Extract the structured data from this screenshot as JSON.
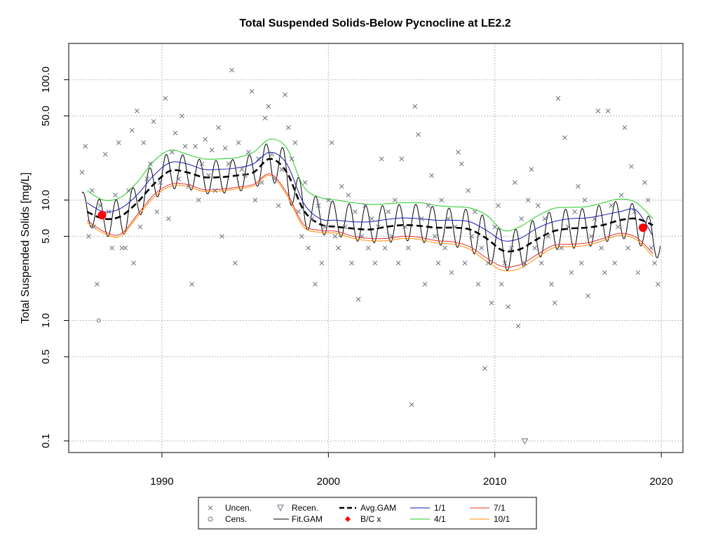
{
  "chart_data": {
    "type": "scatter",
    "title": "Total Suspended Solids-Below Pycnocline at LE2.2",
    "xlabel": "",
    "ylabel": "Total Suspended Solids [mg/L]",
    "x_scale": "linear",
    "y_scale": "log",
    "xlim": [
      1984.4,
      2021.3
    ],
    "ylim": [
      0.08,
      200
    ],
    "x_ticks": [
      "1990",
      "2000",
      "2010",
      "2020"
    ],
    "x_tick_values": [
      1990,
      2000,
      2010,
      2020
    ],
    "y_ticks": [
      "0.1",
      "0.5",
      "1.0",
      "5.0",
      "10.0",
      "50.0",
      "100.0"
    ],
    "y_tick_values": [
      0.1,
      0.5,
      1.0,
      5.0,
      10.0,
      50.0,
      100.0
    ],
    "grid": true,
    "legend_position": "bottom-center",
    "colors": {
      "uncensored": "#6B7280",
      "fit_gam": "#000000",
      "avg_gam": "#000000",
      "jan_1": "#1A1AB0",
      "apr_1": "#22CC22",
      "jul_1": "#E53030",
      "oct_1": "#FF8C00",
      "bc": "#FF0000",
      "grid": "#BBBBBB"
    },
    "legend": {
      "uncen": "Uncen.",
      "cens": "Cens.",
      "recen": "Recen.",
      "fit_gam": "Fit.GAM",
      "avg_gam": "Avg.GAM",
      "bc": "B/C x",
      "jan": "1/1",
      "apr": "4/1",
      "jul": "7/1",
      "oct": "10/1"
    },
    "bc_points": [
      {
        "x": 1986.4,
        "y": 7.5
      },
      {
        "x": 2018.9,
        "y": 5.9
      }
    ],
    "censored_points": [
      {
        "x": 1986.2,
        "y": 1.0
      }
    ],
    "recensored_points": [
      {
        "x": 2011.8,
        "y": 0.1
      }
    ],
    "avg_gam": {
      "x": [
        1985.5,
        1986.5,
        1987.5,
        1988.5,
        1989.5,
        1990.5,
        1991.5,
        1992.5,
        1993.5,
        1994.5,
        1995.5,
        1996.5,
        1997.5,
        1998.5,
        1999.5,
        2000.5,
        2001.5,
        2002.5,
        2003.5,
        2004.5,
        2005.5,
        2006.5,
        2007.5,
        2008.5,
        2009.5,
        2010.5,
        2011.5,
        2012.5,
        2013.5,
        2014.5,
        2015.5,
        2016.5,
        2017.5,
        2018.5,
        2019.5
      ],
      "y": [
        8.0,
        7.0,
        7.3,
        9.5,
        13.5,
        17.5,
        17.0,
        15.5,
        15.5,
        16.0,
        17.0,
        22.0,
        17.0,
        8.3,
        6.3,
        6.0,
        5.8,
        5.7,
        6.0,
        6.2,
        6.1,
        5.9,
        5.9,
        5.7,
        4.8,
        3.8,
        3.9,
        4.7,
        5.5,
        5.8,
        5.9,
        6.2,
        6.8,
        7.0,
        6.2
      ]
    },
    "series": [
      {
        "name": "1/1",
        "x": [
          1985.5,
          1986.5,
          1987.5,
          1988.5,
          1989.5,
          1990.5,
          1991.5,
          1992.5,
          1993.5,
          1994.5,
          1995.5,
          1996.5,
          1997.5,
          1998.5,
          1999.5,
          2000.5,
          2001.5,
          2002.5,
          2003.5,
          2004.5,
          2005.5,
          2006.5,
          2007.5,
          2008.5,
          2009.5,
          2010.5,
          2011.5,
          2012.5,
          2013.5,
          2014.5,
          2015.5,
          2016.5,
          2017.5,
          2018.5,
          2019.5
        ],
        "y": [
          9.5,
          8.0,
          8.5,
          11.0,
          16.0,
          20.5,
          20.0,
          18.0,
          18.0,
          18.5,
          20.0,
          25.0,
          20.0,
          9.5,
          7.0,
          6.8,
          6.6,
          6.6,
          6.9,
          7.1,
          7.0,
          6.8,
          6.8,
          6.6,
          5.6,
          4.6,
          4.8,
          5.8,
          6.6,
          7.0,
          7.1,
          7.5,
          8.0,
          8.2,
          5.0
        ]
      },
      {
        "name": "4/1",
        "x": [
          1985.5,
          1986.5,
          1987.5,
          1988.5,
          1989.5,
          1990.5,
          1991.5,
          1992.5,
          1993.5,
          1994.5,
          1995.5,
          1996.5,
          1997.5,
          1998.5,
          1999.5,
          2000.5,
          2001.5,
          2002.5,
          2003.5,
          2004.5,
          2005.5,
          2006.5,
          2007.5,
          2008.5,
          2009.5,
          2010.5,
          2011.5,
          2012.5,
          2013.5,
          2014.5,
          2015.5,
          2016.5,
          2017.5,
          2018.5,
          2019.5
        ],
        "y": [
          12.0,
          10.0,
          10.5,
          14.0,
          21.0,
          26.0,
          24.0,
          22.0,
          22.0,
          22.5,
          25.0,
          32.0,
          27.0,
          13.0,
          10.5,
          10.0,
          9.5,
          9.2,
          9.3,
          9.5,
          9.5,
          9.0,
          8.8,
          8.6,
          7.5,
          5.6,
          6.0,
          7.3,
          8.5,
          8.7,
          8.8,
          9.5,
          10.2,
          9.5,
          7.0
        ]
      },
      {
        "name": "7/1",
        "x": [
          1985.5,
          1986.5,
          1987.5,
          1988.5,
          1989.5,
          1990.5,
          1991.5,
          1992.5,
          1993.5,
          1994.5,
          1995.5,
          1996.5,
          1997.5,
          1998.5,
          1999.5,
          2000.5,
          2001.5,
          2002.5,
          2003.5,
          2004.5,
          2005.5,
          2006.5,
          2007.5,
          2008.5,
          2009.5,
          2010.5,
          2011.5,
          2012.5,
          2013.5,
          2014.5,
          2015.5,
          2016.5,
          2017.5,
          2018.5,
          2019.5
        ],
        "y": [
          6.8,
          5.5,
          5.2,
          7.5,
          11.0,
          13.5,
          13.5,
          12.2,
          12.3,
          12.8,
          13.5,
          16.5,
          11.5,
          6.3,
          5.6,
          5.5,
          5.0,
          4.8,
          4.8,
          5.0,
          4.9,
          4.6,
          4.5,
          4.1,
          3.3,
          2.8,
          2.9,
          3.5,
          4.2,
          4.3,
          4.4,
          4.8,
          5.3,
          4.9,
          3.6
        ]
      },
      {
        "name": "10/1",
        "x": [
          1985.5,
          1986.5,
          1987.5,
          1988.5,
          1989.5,
          1990.5,
          1991.5,
          1992.5,
          1993.5,
          1994.5,
          1995.5,
          1996.5,
          1997.5,
          1998.5,
          1999.5,
          2000.5,
          2001.5,
          2002.5,
          2003.5,
          2004.5,
          2005.5,
          2006.5,
          2007.5,
          2008.5,
          2009.5,
          2010.5,
          2011.5,
          2012.5,
          2013.5,
          2014.5,
          2015.5,
          2016.5,
          2017.5,
          2018.5,
          2019.5
        ],
        "y": [
          6.5,
          5.3,
          5.0,
          7.2,
          10.5,
          13.0,
          13.0,
          11.8,
          11.9,
          12.4,
          13.1,
          16.0,
          11.0,
          6.0,
          5.4,
          5.3,
          4.8,
          4.6,
          4.6,
          4.8,
          4.7,
          4.4,
          4.3,
          3.9,
          3.1,
          2.6,
          2.7,
          3.3,
          4.0,
          4.1,
          4.2,
          4.6,
          5.1,
          4.7,
          3.4
        ]
      }
    ],
    "uncensored_points": [
      {
        "x": 1985.2,
        "y": 17
      },
      {
        "x": 1985.4,
        "y": 28
      },
      {
        "x": 1985.6,
        "y": 5
      },
      {
        "x": 1985.8,
        "y": 12
      },
      {
        "x": 1985.9,
        "y": 6
      },
      {
        "x": 1986.1,
        "y": 2
      },
      {
        "x": 1986.3,
        "y": 9
      },
      {
        "x": 1986.6,
        "y": 24
      },
      {
        "x": 1986.8,
        "y": 8
      },
      {
        "x": 1987.0,
        "y": 4
      },
      {
        "x": 1987.2,
        "y": 11
      },
      {
        "x": 1987.4,
        "y": 30
      },
      {
        "x": 1987.6,
        "y": 4
      },
      {
        "x": 1987.8,
        "y": 4
      },
      {
        "x": 1988.0,
        "y": 12
      },
      {
        "x": 1988.2,
        "y": 38
      },
      {
        "x": 1988.3,
        "y": 3
      },
      {
        "x": 1988.5,
        "y": 55
      },
      {
        "x": 1988.7,
        "y": 6
      },
      {
        "x": 1988.9,
        "y": 30
      },
      {
        "x": 1989.1,
        "y": 15
      },
      {
        "x": 1989.3,
        "y": 20
      },
      {
        "x": 1989.5,
        "y": 45
      },
      {
        "x": 1989.7,
        "y": 8
      },
      {
        "x": 1989.9,
        "y": 14
      },
      {
        "x": 1990.2,
        "y": 70
      },
      {
        "x": 1990.4,
        "y": 7
      },
      {
        "x": 1990.6,
        "y": 25
      },
      {
        "x": 1990.8,
        "y": 36
      },
      {
        "x": 1991.0,
        "y": 15
      },
      {
        "x": 1991.2,
        "y": 50
      },
      {
        "x": 1991.4,
        "y": 28
      },
      {
        "x": 1991.6,
        "y": 13
      },
      {
        "x": 1991.8,
        "y": 2
      },
      {
        "x": 1992.0,
        "y": 28
      },
      {
        "x": 1992.2,
        "y": 10
      },
      {
        "x": 1992.4,
        "y": 20
      },
      {
        "x": 1992.6,
        "y": 32
      },
      {
        "x": 1992.8,
        "y": 16
      },
      {
        "x": 1993.0,
        "y": 26
      },
      {
        "x": 1993.2,
        "y": 12
      },
      {
        "x": 1993.4,
        "y": 40
      },
      {
        "x": 1993.6,
        "y": 5
      },
      {
        "x": 1993.8,
        "y": 27
      },
      {
        "x": 1994.0,
        "y": 20
      },
      {
        "x": 1994.2,
        "y": 120
      },
      {
        "x": 1994.4,
        "y": 3
      },
      {
        "x": 1994.6,
        "y": 30
      },
      {
        "x": 1994.8,
        "y": 18
      },
      {
        "x": 1995.0,
        "y": 16
      },
      {
        "x": 1995.2,
        "y": 25
      },
      {
        "x": 1995.4,
        "y": 80
      },
      {
        "x": 1995.6,
        "y": 10
      },
      {
        "x": 1995.8,
        "y": 22
      },
      {
        "x": 1996.0,
        "y": 14
      },
      {
        "x": 1996.2,
        "y": 48
      },
      {
        "x": 1996.4,
        "y": 60
      },
      {
        "x": 1996.6,
        "y": 24
      },
      {
        "x": 1996.8,
        "y": 15
      },
      {
        "x": 1997.0,
        "y": 9
      },
      {
        "x": 1997.2,
        "y": 18
      },
      {
        "x": 1997.4,
        "y": 75
      },
      {
        "x": 1997.6,
        "y": 40
      },
      {
        "x": 1997.8,
        "y": 22
      },
      {
        "x": 1998.0,
        "y": 30
      },
      {
        "x": 1998.2,
        "y": 8
      },
      {
        "x": 1998.4,
        "y": 5
      },
      {
        "x": 1998.6,
        "y": 14
      },
      {
        "x": 1998.8,
        "y": 4
      },
      {
        "x": 1999.0,
        "y": 7
      },
      {
        "x": 1999.2,
        "y": 2
      },
      {
        "x": 1999.4,
        "y": 9
      },
      {
        "x": 1999.6,
        "y": 3
      },
      {
        "x": 1999.8,
        "y": 6
      },
      {
        "x": 2000.0,
        "y": 10
      },
      {
        "x": 2000.2,
        "y": 30
      },
      {
        "x": 2000.4,
        "y": 5
      },
      {
        "x": 2000.6,
        "y": 4
      },
      {
        "x": 2000.8,
        "y": 13
      },
      {
        "x": 2001.0,
        "y": 6
      },
      {
        "x": 2001.2,
        "y": 11
      },
      {
        "x": 2001.4,
        "y": 3
      },
      {
        "x": 2001.6,
        "y": 8
      },
      {
        "x": 2001.8,
        "y": 1.5
      },
      {
        "x": 2002.0,
        "y": 5
      },
      {
        "x": 2002.2,
        "y": 9
      },
      {
        "x": 2002.4,
        "y": 4
      },
      {
        "x": 2002.6,
        "y": 7
      },
      {
        "x": 2002.8,
        "y": 3
      },
      {
        "x": 2003.0,
        "y": 6
      },
      {
        "x": 2003.2,
        "y": 22
      },
      {
        "x": 2003.4,
        "y": 4
      },
      {
        "x": 2003.6,
        "y": 8
      },
      {
        "x": 2003.8,
        "y": 5
      },
      {
        "x": 2004.0,
        "y": 10
      },
      {
        "x": 2004.2,
        "y": 3
      },
      {
        "x": 2004.4,
        "y": 22
      },
      {
        "x": 2004.6,
        "y": 6
      },
      {
        "x": 2004.8,
        "y": 4
      },
      {
        "x": 2005.0,
        "y": 0.2
      },
      {
        "x": 2005.2,
        "y": 60
      },
      {
        "x": 2005.4,
        "y": 35
      },
      {
        "x": 2005.6,
        "y": 7
      },
      {
        "x": 2005.8,
        "y": 2
      },
      {
        "x": 2006.0,
        "y": 9
      },
      {
        "x": 2006.2,
        "y": 16
      },
      {
        "x": 2006.4,
        "y": 5
      },
      {
        "x": 2006.6,
        "y": 3
      },
      {
        "x": 2006.8,
        "y": 10
      },
      {
        "x": 2007.0,
        "y": 4
      },
      {
        "x": 2007.2,
        "y": 7
      },
      {
        "x": 2007.4,
        "y": 2.5
      },
      {
        "x": 2007.6,
        "y": 6
      },
      {
        "x": 2007.8,
        "y": 25
      },
      {
        "x": 2008.0,
        "y": 20
      },
      {
        "x": 2008.2,
        "y": 3
      },
      {
        "x": 2008.4,
        "y": 12
      },
      {
        "x": 2008.6,
        "y": 5
      },
      {
        "x": 2008.8,
        "y": 8
      },
      {
        "x": 2009.0,
        "y": 2
      },
      {
        "x": 2009.2,
        "y": 4
      },
      {
        "x": 2009.4,
        "y": 0.4
      },
      {
        "x": 2009.6,
        "y": 3
      },
      {
        "x": 2009.8,
        "y": 1.4
      },
      {
        "x": 2010.0,
        "y": 6
      },
      {
        "x": 2010.2,
        "y": 9
      },
      {
        "x": 2010.4,
        "y": 2
      },
      {
        "x": 2010.6,
        "y": 3
      },
      {
        "x": 2010.8,
        "y": 1.3
      },
      {
        "x": 2011.0,
        "y": 4
      },
      {
        "x": 2011.2,
        "y": 14
      },
      {
        "x": 2011.4,
        "y": 0.9
      },
      {
        "x": 2011.6,
        "y": 7
      },
      {
        "x": 2011.8,
        "y": 3
      },
      {
        "x": 2012.0,
        "y": 10
      },
      {
        "x": 2012.2,
        "y": 18
      },
      {
        "x": 2012.4,
        "y": 4
      },
      {
        "x": 2012.6,
        "y": 9
      },
      {
        "x": 2012.8,
        "y": 3
      },
      {
        "x": 2013.0,
        "y": 7
      },
      {
        "x": 2013.2,
        "y": 5
      },
      {
        "x": 2013.4,
        "y": 2
      },
      {
        "x": 2013.6,
        "y": 1.4
      },
      {
        "x": 2013.8,
        "y": 70
      },
      {
        "x": 2014.0,
        "y": 4
      },
      {
        "x": 2014.2,
        "y": 33
      },
      {
        "x": 2014.4,
        "y": 6
      },
      {
        "x": 2014.6,
        "y": 2.5
      },
      {
        "x": 2014.8,
        "y": 8
      },
      {
        "x": 2015.0,
        "y": 13
      },
      {
        "x": 2015.2,
        "y": 3
      },
      {
        "x": 2015.4,
        "y": 10
      },
      {
        "x": 2015.6,
        "y": 1.6
      },
      {
        "x": 2015.8,
        "y": 5
      },
      {
        "x": 2016.0,
        "y": 7
      },
      {
        "x": 2016.2,
        "y": 55
      },
      {
        "x": 2016.4,
        "y": 4
      },
      {
        "x": 2016.6,
        "y": 2.5
      },
      {
        "x": 2016.8,
        "y": 55
      },
      {
        "x": 2017.0,
        "y": 9
      },
      {
        "x": 2017.2,
        "y": 3
      },
      {
        "x": 2017.4,
        "y": 6
      },
      {
        "x": 2017.6,
        "y": 11
      },
      {
        "x": 2017.8,
        "y": 40
      },
      {
        "x": 2018.0,
        "y": 4
      },
      {
        "x": 2018.2,
        "y": 19
      },
      {
        "x": 2018.4,
        "y": 8
      },
      {
        "x": 2018.6,
        "y": 2.5
      },
      {
        "x": 2018.8,
        "y": 6
      },
      {
        "x": 2019.0,
        "y": 14
      },
      {
        "x": 2019.2,
        "y": 10
      },
      {
        "x": 2019.4,
        "y": 4
      },
      {
        "x": 2019.6,
        "y": 3
      },
      {
        "x": 2019.8,
        "y": 2
      }
    ]
  }
}
